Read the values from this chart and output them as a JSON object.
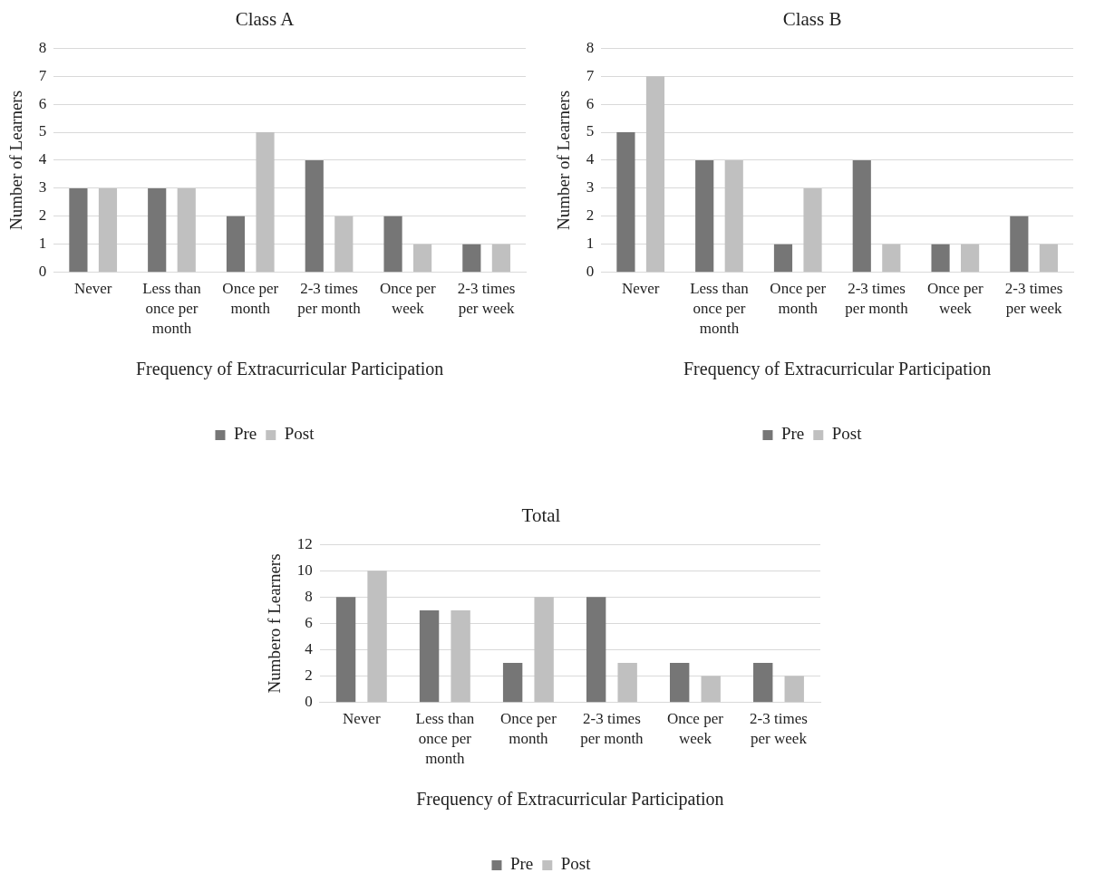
{
  "chart_data": [
    {
      "type": "bar",
      "title": "Class A",
      "xlabel": "Frequency of Extracurricular Participation",
      "ylabel": "Number of Learners",
      "categories": [
        "Never",
        "Less than once per month",
        "Once per month",
        "2-3 times per month",
        "Once per week",
        "2-3 times per week"
      ],
      "series": [
        {
          "name": "Pre",
          "color": "#767676",
          "values": [
            3,
            3,
            2,
            4,
            2,
            1
          ]
        },
        {
          "name": "Post",
          "color": "#c0c0c0",
          "values": [
            3,
            3,
            5,
            2,
            1,
            1
          ]
        }
      ],
      "ylim": [
        0,
        8
      ],
      "yticks": [
        0,
        1,
        2,
        3,
        4,
        5,
        6,
        7,
        8
      ],
      "grid": "y",
      "legend": "bottom"
    },
    {
      "type": "bar",
      "title": "Class B",
      "xlabel": "Frequency of Extracurricular Participation",
      "ylabel": "Number of Learners",
      "categories": [
        "Never",
        "Less than once per month",
        "Once per month",
        "2-3 times per month",
        "Once per week",
        "2-3 times per week"
      ],
      "series": [
        {
          "name": "Pre",
          "color": "#767676",
          "values": [
            5,
            4,
            1,
            4,
            1,
            2
          ]
        },
        {
          "name": "Post",
          "color": "#c0c0c0",
          "values": [
            7,
            4,
            3,
            1,
            1,
            1
          ]
        }
      ],
      "ylim": [
        0,
        8
      ],
      "yticks": [
        0,
        1,
        2,
        3,
        4,
        5,
        6,
        7,
        8
      ],
      "grid": "y",
      "legend": "bottom"
    },
    {
      "type": "bar",
      "title": "Total",
      "xlabel": "Frequency of Extracurricular Participation",
      "ylabel": "Numbero f Learners",
      "categories": [
        "Never",
        "Less than once per month",
        "Once per month",
        "2-3 times per month",
        "Once per week",
        "2-3 times per week"
      ],
      "series": [
        {
          "name": "Pre",
          "color": "#767676",
          "values": [
            8,
            7,
            3,
            8,
            3,
            3
          ]
        },
        {
          "name": "Post",
          "color": "#c0c0c0",
          "values": [
            10,
            7,
            8,
            3,
            2,
            2
          ]
        }
      ],
      "ylim": [
        0,
        12
      ],
      "yticks": [
        0,
        2,
        4,
        6,
        8,
        10,
        12
      ],
      "grid": "y",
      "legend": "bottom"
    }
  ]
}
